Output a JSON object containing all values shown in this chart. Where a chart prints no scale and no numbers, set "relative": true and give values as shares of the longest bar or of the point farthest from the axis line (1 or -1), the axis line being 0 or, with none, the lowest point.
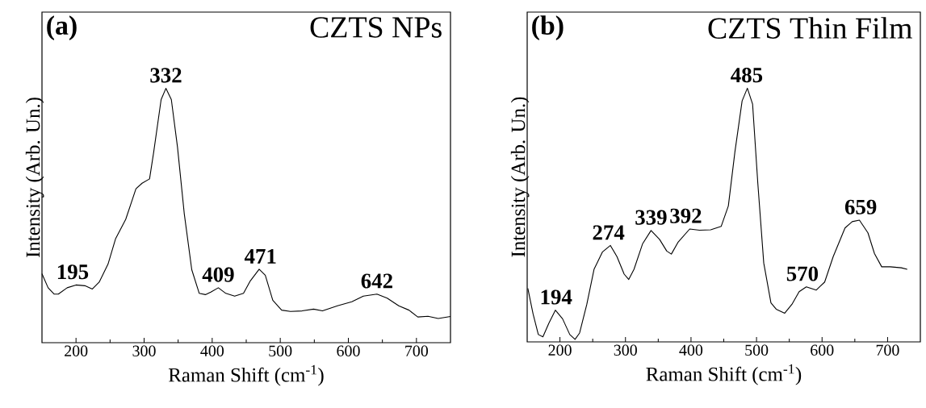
{
  "chart_data": [
    {
      "type": "line",
      "title": "CZTS NPs",
      "xlabel": "Raman Shift (cm$^{-1}$)",
      "ylabel": "Intensity (Arb. Un.)",
      "relative": true,
      "color": "#000000",
      "xlim": [
        150,
        750
      ],
      "xticks": [
        200,
        300,
        400,
        500,
        600,
        700
      ],
      "annotations": [
        "(a)",
        {
          "text": "195",
          "x": 195,
          "y": 0.227
        },
        {
          "text": "332",
          "x": 332,
          "y": 1.0
        },
        {
          "text": "409",
          "x": 409,
          "y": 0.216
        },
        {
          "text": "471",
          "x": 471,
          "y": 0.289
        },
        {
          "text": "642",
          "x": 642,
          "y": 0.191
        }
      ],
      "x": [
        150,
        159,
        168,
        174,
        187,
        200,
        213,
        224,
        234,
        247,
        258,
        273,
        288,
        297,
        308,
        314,
        325,
        332,
        340,
        349,
        359,
        370,
        381,
        390,
        398,
        409,
        420,
        433,
        446,
        456,
        469,
        478,
        489,
        502,
        515,
        532,
        549,
        562,
        584,
        605,
        622,
        642,
        657,
        674,
        689,
        702,
        717,
        732,
        750
      ],
      "values": [
        0.271,
        0.216,
        0.191,
        0.191,
        0.216,
        0.227,
        0.224,
        0.211,
        0.238,
        0.309,
        0.408,
        0.485,
        0.605,
        0.627,
        0.644,
        0.748,
        0.956,
        1.0,
        0.956,
        0.77,
        0.507,
        0.287,
        0.194,
        0.189,
        0.199,
        0.216,
        0.194,
        0.183,
        0.194,
        0.243,
        0.289,
        0.265,
        0.167,
        0.128,
        0.123,
        0.125,
        0.132,
        0.125,
        0.145,
        0.161,
        0.183,
        0.191,
        0.175,
        0.145,
        0.128,
        0.101,
        0.104,
        0.095,
        0.103
      ]
    },
    {
      "type": "line",
      "title": "CZTS Thin Film",
      "xlabel": "Raman Shift (cm$^{-1}$)",
      "ylabel": "Intensity (Arb. Un.)",
      "relative": true,
      "color": "#000000",
      "xlim": [
        150,
        750
      ],
      "xticks": [
        200,
        300,
        400,
        500,
        600,
        700
      ],
      "annotations": [
        "(b)",
        {
          "text": "194",
          "x": 194,
          "y": 0.125
        },
        {
          "text": "274",
          "x": 274,
          "y": 0.38
        },
        {
          "text": "339",
          "x": 339,
          "y": 0.439
        },
        {
          "text": "392",
          "x": 392,
          "y": 0.445
        },
        {
          "text": "485",
          "x": 485,
          "y": 1.0
        },
        {
          "text": "570",
          "x": 570,
          "y": 0.217
        },
        {
          "text": "659",
          "x": 659,
          "y": 0.48
        }
      ],
      "x": [
        151,
        159,
        167,
        174,
        183,
        193,
        204,
        215,
        223,
        230,
        241,
        252,
        265,
        277,
        287,
        298,
        305,
        313,
        326,
        339,
        352,
        363,
        370,
        380,
        398,
        413,
        430,
        446,
        457,
        467,
        478,
        486,
        494,
        502,
        511,
        522,
        530,
        543,
        554,
        565,
        576,
        591,
        604,
        617,
        635,
        646,
        657,
        670,
        680,
        691,
        704,
        721,
        730
      ],
      "values": [
        0.211,
        0.11,
        0.029,
        0.02,
        0.073,
        0.125,
        0.091,
        0.029,
        0.01,
        0.035,
        0.148,
        0.286,
        0.355,
        0.38,
        0.336,
        0.267,
        0.246,
        0.286,
        0.386,
        0.439,
        0.404,
        0.358,
        0.346,
        0.392,
        0.445,
        0.44,
        0.442,
        0.455,
        0.536,
        0.749,
        0.95,
        1.0,
        0.937,
        0.624,
        0.311,
        0.154,
        0.129,
        0.113,
        0.148,
        0.198,
        0.217,
        0.204,
        0.236,
        0.336,
        0.449,
        0.474,
        0.48,
        0.43,
        0.348,
        0.296,
        0.296,
        0.292,
        0.286
      ]
    }
  ]
}
